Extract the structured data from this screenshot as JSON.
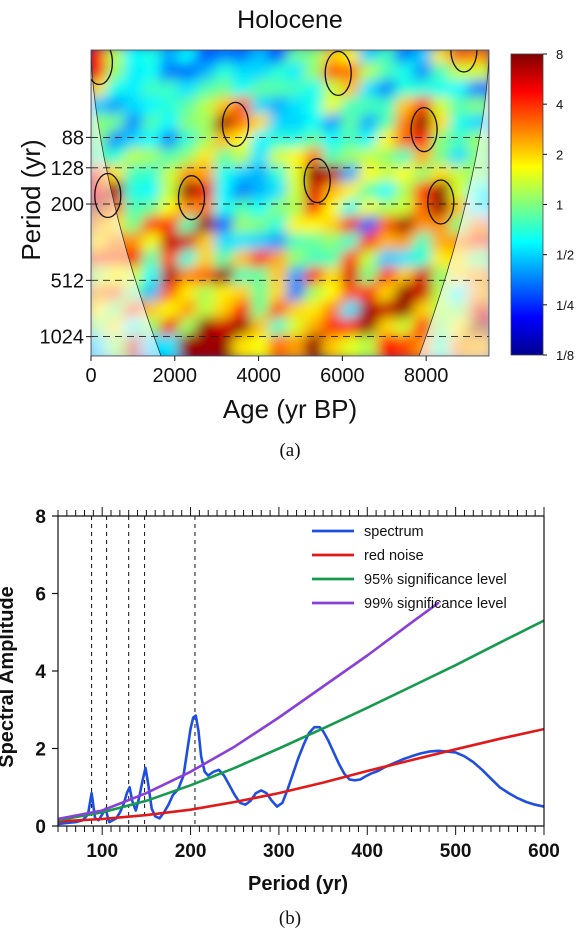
{
  "chart_data": [
    {
      "type": "heatmap",
      "title": "Holocene",
      "xlabel": "Age (yr BP)",
      "ylabel": "Period (yr)",
      "xlim": [
        0,
        9500
      ],
      "x_ticks": [
        0,
        2000,
        4000,
        6000,
        8000
      ],
      "y_scale": "log2",
      "ylim": [
        30,
        1300
      ],
      "y_ticks": [
        88,
        128,
        200,
        512,
        1024
      ],
      "y_tick_labels": [
        "88",
        "128",
        "200",
        "512",
        "1024"
      ],
      "dashed_reference_periods": [
        88,
        128,
        200,
        512,
        1024
      ],
      "colorbar": {
        "scale": "log2",
        "range": [
          0.125,
          8
        ],
        "tick_labels": [
          "8",
          "4",
          "2",
          "1",
          "1/2",
          "1/4",
          "1/8"
        ],
        "tick_values": [
          8,
          4,
          2,
          1,
          0.5,
          0.25,
          0.125
        ],
        "colormap": "jet"
      },
      "cone_of_influence": true,
      "significance_contours": [
        {
          "center_age": 400,
          "center_period": 180
        },
        {
          "center_age": 2400,
          "center_period": 185
        },
        {
          "center_age": 5400,
          "center_period": 150
        },
        {
          "center_age": 8350,
          "center_period": 195
        },
        {
          "center_age": 7950,
          "center_period": 80
        },
        {
          "center_age": 3450,
          "center_period": 75
        },
        {
          "center_age": 5900,
          "center_period": 40
        },
        {
          "center_age": 8900,
          "center_period": 30
        },
        {
          "center_age": 200,
          "center_period": 35
        }
      ],
      "caption": "(a)"
    },
    {
      "type": "line",
      "xlabel": "Period (yr)",
      "ylabel": "Spectral Amplitude",
      "xlim": [
        50,
        600
      ],
      "ylim": [
        0,
        8
      ],
      "x_ticks": [
        100,
        200,
        300,
        400,
        500,
        600
      ],
      "y_ticks": [
        0,
        2,
        4,
        6,
        8
      ],
      "legend_position": "top-right",
      "dashed_reference_periods": [
        88,
        105,
        130,
        148,
        205
      ],
      "series": [
        {
          "name": "spectrum",
          "color": "#1f4fe0",
          "x": [
            50,
            60,
            70,
            78,
            84,
            88,
            92,
            96,
            100,
            104,
            106,
            108,
            112,
            116,
            120,
            124,
            128,
            131,
            134,
            138,
            142,
            146,
            149,
            152,
            156,
            160,
            165,
            170,
            175,
            180,
            186,
            192,
            196,
            200,
            203,
            206,
            209,
            212,
            216,
            220,
            226,
            232,
            238,
            244,
            250,
            256,
            262,
            268,
            274,
            280,
            286,
            292,
            298,
            304,
            310,
            316,
            322,
            328,
            334,
            340,
            346,
            350,
            356,
            362,
            368,
            374,
            380,
            386,
            392,
            398,
            404,
            412,
            420,
            430,
            440,
            450,
            460,
            470,
            480,
            490,
            500,
            510,
            520,
            530,
            540,
            550,
            560,
            570,
            580,
            590,
            600
          ],
          "values": [
            0.05,
            0.08,
            0.1,
            0.15,
            0.3,
            0.85,
            0.2,
            0.15,
            0.3,
            0.45,
            0.25,
            0.1,
            0.15,
            0.2,
            0.35,
            0.55,
            0.85,
            1.0,
            0.65,
            0.4,
            0.75,
            1.2,
            1.5,
            1.1,
            0.45,
            0.25,
            0.2,
            0.35,
            0.55,
            0.8,
            0.95,
            1.3,
            1.9,
            2.5,
            2.8,
            2.85,
            2.45,
            1.8,
            1.4,
            1.3,
            1.4,
            1.45,
            1.3,
            1.05,
            0.8,
            0.6,
            0.55,
            0.65,
            0.85,
            0.92,
            0.85,
            0.65,
            0.5,
            0.6,
            0.95,
            1.35,
            1.75,
            2.1,
            2.4,
            2.55,
            2.55,
            2.45,
            2.2,
            1.9,
            1.6,
            1.35,
            1.2,
            1.18,
            1.2,
            1.28,
            1.35,
            1.42,
            1.52,
            1.62,
            1.72,
            1.8,
            1.87,
            1.92,
            1.94,
            1.92,
            1.9,
            1.8,
            1.65,
            1.45,
            1.22,
            1.0,
            0.85,
            0.72,
            0.62,
            0.55,
            0.5
          ]
        },
        {
          "name": "red noise",
          "color": "#e01a1a",
          "x": [
            50,
            100,
            150,
            200,
            250,
            300,
            350,
            400,
            450,
            500,
            550,
            600
          ],
          "values": [
            0.12,
            0.18,
            0.28,
            0.42,
            0.62,
            0.85,
            1.12,
            1.42,
            1.7,
            1.98,
            2.25,
            2.5
          ]
        },
        {
          "name": "95% significance level",
          "color": "#169a4e",
          "x": [
            50,
            100,
            150,
            200,
            250,
            300,
            350,
            400,
            450,
            500,
            550,
            600
          ],
          "values": [
            0.15,
            0.35,
            0.65,
            1.05,
            1.5,
            2.0,
            2.52,
            3.05,
            3.6,
            4.15,
            4.73,
            5.3
          ]
        },
        {
          "name": "99% significance level",
          "color": "#8a3fd6",
          "x": [
            50,
            100,
            150,
            200,
            250,
            300,
            350,
            400,
            450,
            480
          ],
          "values": [
            0.18,
            0.4,
            0.85,
            1.4,
            2.05,
            2.8,
            3.6,
            4.4,
            5.25,
            5.75
          ]
        }
      ],
      "caption": "(b)"
    }
  ]
}
